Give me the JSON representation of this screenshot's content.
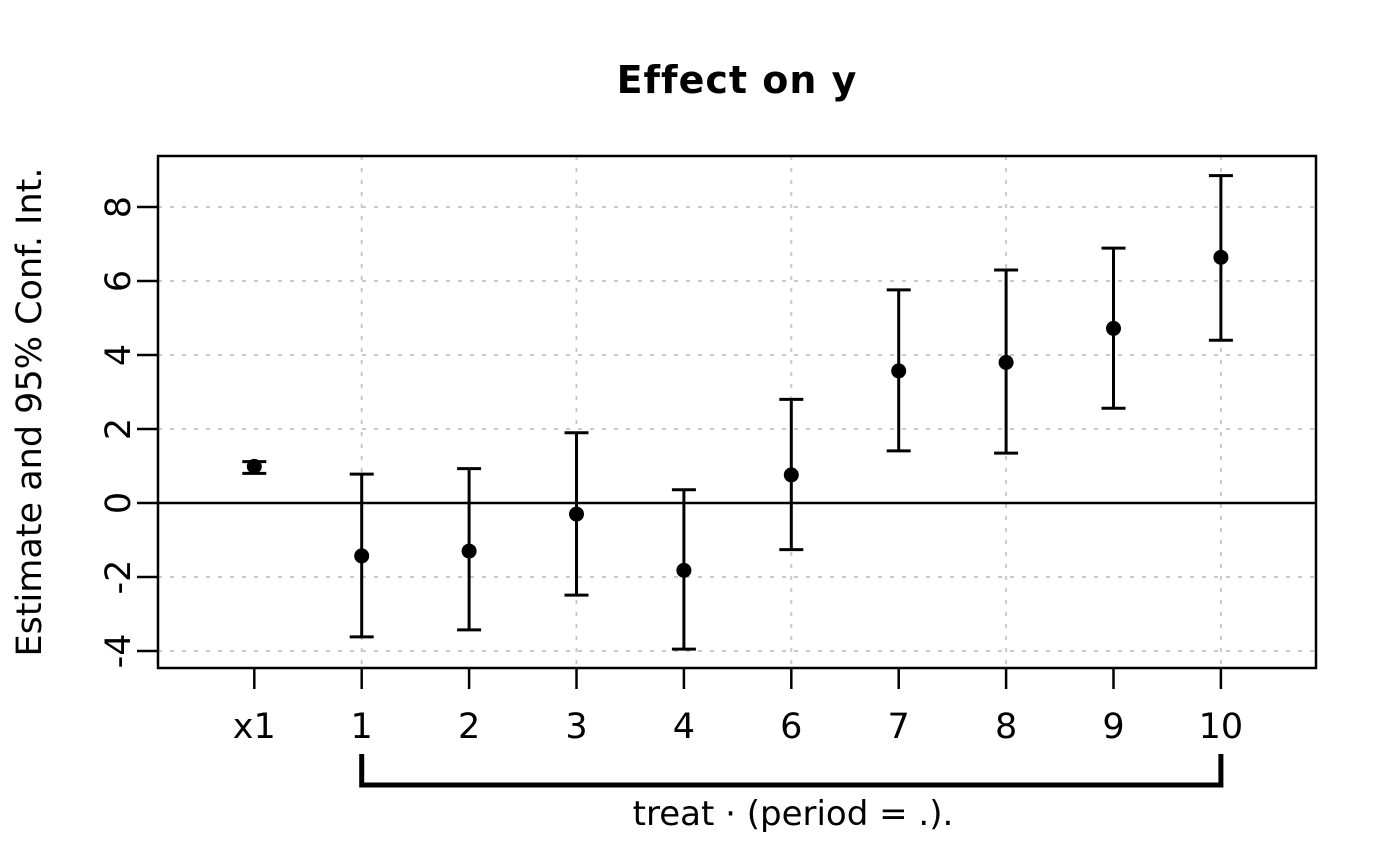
{
  "chart_data": {
    "type": "scatter",
    "subtype": "coefficient-plot-with-error-bars",
    "title": "Effect on y",
    "ylabel": "Estimate and 95% Conf. Int.",
    "xlabel": "",
    "categories": [
      "x1",
      "1",
      "2",
      "3",
      "4",
      "6",
      "7",
      "8",
      "9",
      "10"
    ],
    "series": [
      {
        "name": "Estimate",
        "estimates": [
          0.99,
          -1.43,
          -1.3,
          -0.3,
          -1.82,
          0.76,
          3.57,
          3.8,
          4.72,
          6.64
        ],
        "ci_low": [
          0.8,
          -3.62,
          -3.43,
          -2.49,
          -3.95,
          -1.26,
          1.41,
          1.35,
          2.56,
          4.4
        ],
        "ci_high": [
          1.12,
          0.78,
          0.93,
          1.9,
          0.36,
          2.8,
          5.76,
          6.3,
          6.89,
          8.85
        ]
      }
    ],
    "y_ticks": [
      8,
      6,
      4,
      2,
      0,
      -2,
      -4
    ],
    "ylim": [
      -4.46,
      9.38
    ],
    "grid": true,
    "grid_x_at_categories": [
      "1",
      "3",
      "6",
      "8",
      "10"
    ],
    "zero_reference_line": 0,
    "bracket": {
      "from_category": "1",
      "to_category": "10",
      "label": "treat · (period = .)."
    },
    "colors": {
      "point": "#000000",
      "error_bar": "#000000",
      "axis": "#000000",
      "grid": "#c9c9c9",
      "background": "#ffffff"
    }
  }
}
